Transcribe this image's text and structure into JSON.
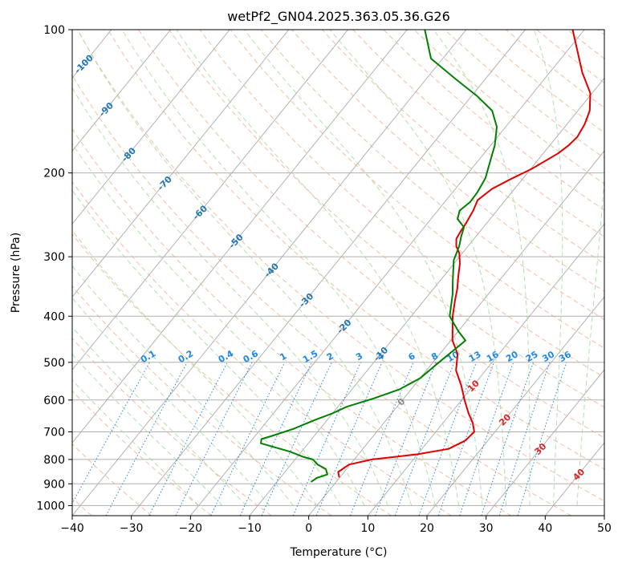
{
  "chart_data": {
    "type": "line",
    "title": "wetPf2_GN04.2025.363.05.36.G26",
    "xlabel": "Temperature (°C)",
    "ylabel": "Pressure (hPa)",
    "xlim": [
      -40,
      50
    ],
    "ylim": [
      1050,
      100
    ],
    "y_scale": "log",
    "x_ticks": [
      -40,
      -30,
      -20,
      -10,
      0,
      10,
      20,
      30,
      40,
      50
    ],
    "y_ticks": [
      100,
      200,
      300,
      400,
      500,
      600,
      700,
      800,
      900,
      1000
    ],
    "grid": true,
    "colors": {
      "temperature": "#e00000",
      "dewpoint": "#008000",
      "isotherm": "#aaaaaa",
      "dry_adiabat": "#f4a582",
      "moist_adiabat": "#a6d9a0",
      "mixing_ratio": "#1e88e5",
      "isotherm_label": "#1f77b4",
      "adiabat_label": "#d62728"
    },
    "series": [
      {
        "id": "temperature",
        "points": [
          [
            -0.2,
            870
          ],
          [
            -1.0,
            850
          ],
          [
            -0.2,
            820
          ],
          [
            3.0,
            800
          ],
          [
            10.0,
            780
          ],
          [
            14.5,
            760
          ],
          [
            16.2,
            730
          ],
          [
            16.5,
            700
          ],
          [
            15.0,
            670
          ],
          [
            13.0,
            640
          ],
          [
            10.5,
            600
          ],
          [
            8.0,
            560
          ],
          [
            5.0,
            520
          ],
          [
            3.0,
            480
          ],
          [
            0.3,
            450
          ],
          [
            -3.0,
            400
          ],
          [
            -4.8,
            370
          ],
          [
            -6.0,
            350
          ],
          [
            -7.5,
            330
          ],
          [
            -9.0,
            310
          ],
          [
            -10.5,
            295
          ],
          [
            -12.0,
            285
          ],
          [
            -13.0,
            275
          ],
          [
            -13.3,
            265
          ],
          [
            -13.5,
            255
          ],
          [
            -14.0,
            240
          ],
          [
            -14.7,
            228
          ],
          [
            -13.8,
            216
          ],
          [
            -12.0,
            206
          ],
          [
            -9.8,
            196
          ],
          [
            -7.5,
            182
          ],
          [
            -6.8,
            175
          ],
          [
            -6.5,
            168
          ],
          [
            -7.0,
            158
          ],
          [
            -8.0,
            148
          ],
          [
            -10.3,
            136
          ],
          [
            -14.5,
            123
          ],
          [
            -22.0,
            100
          ]
        ]
      },
      {
        "id": "dewpoint",
        "points": [
          [
            -4.2,
            890
          ],
          [
            -3.8,
            875
          ],
          [
            -2.5,
            860
          ],
          [
            -3.5,
            838
          ],
          [
            -5.5,
            820
          ],
          [
            -7.0,
            800
          ],
          [
            -9.0,
            790
          ],
          [
            -12.0,
            770
          ],
          [
            -18.0,
            740
          ],
          [
            -18.5,
            725
          ],
          [
            -17.3,
            715
          ],
          [
            -14.5,
            690
          ],
          [
            -12.0,
            660
          ],
          [
            -10.0,
            640
          ],
          [
            -8.5,
            620
          ],
          [
            -5.0,
            595
          ],
          [
            -2.0,
            570
          ],
          [
            0.0,
            540
          ],
          [
            1.0,
            500
          ],
          [
            2.5,
            450
          ],
          [
            0.0,
            430
          ],
          [
            -3.5,
            400
          ],
          [
            -6.0,
            360
          ],
          [
            -8.0,
            335
          ],
          [
            -10.5,
            305
          ],
          [
            -11.5,
            285
          ],
          [
            -12.5,
            272
          ],
          [
            -13.3,
            260
          ],
          [
            -15.5,
            250
          ],
          [
            -16.3,
            240
          ],
          [
            -15.7,
            230
          ],
          [
            -15.8,
            220
          ],
          [
            -16.4,
            205
          ],
          [
            -17.8,
            190
          ],
          [
            -19.3,
            175
          ],
          [
            -21.5,
            160
          ],
          [
            -24.5,
            148
          ],
          [
            -29.0,
            138
          ],
          [
            -35.0,
            127
          ],
          [
            -42.0,
            115
          ],
          [
            -47.0,
            100
          ]
        ]
      }
    ],
    "mixing_ratio_labels": [
      "0.1",
      "0.2",
      "0.4",
      "0.6",
      "1",
      "1.5",
      "2",
      "3",
      "4",
      "6",
      "8",
      "10",
      "13",
      "16",
      "20",
      "25",
      "30",
      "36"
    ],
    "isotherm_labels": [
      "-100",
      "-90",
      "-80",
      "-70",
      "-60",
      "-50",
      "-40",
      "-30",
      "-20",
      "-10",
      "0"
    ],
    "adiabat_labels": [
      "10",
      "20",
      "30",
      "40"
    ]
  }
}
